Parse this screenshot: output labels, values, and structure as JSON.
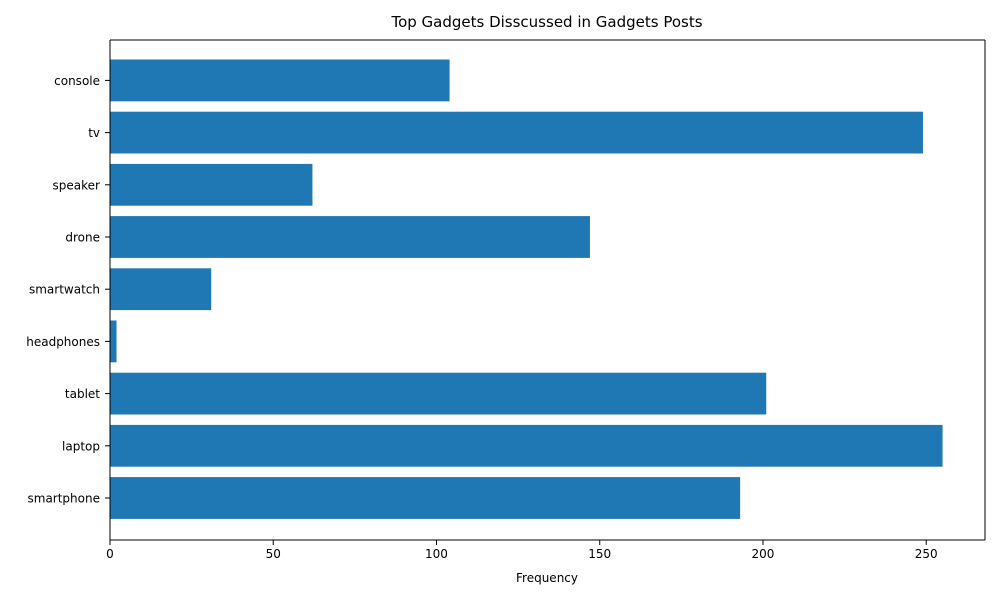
{
  "chart_data": {
    "type": "bar",
    "orientation": "horizontal",
    "title": "Top Gadgets Disscussed in Gadgets Posts",
    "xlabel": "Frequency",
    "ylabel": "",
    "categories": [
      "smartphone",
      "laptop",
      "tablet",
      "headphones",
      "smartwatch",
      "drone",
      "speaker",
      "tv",
      "console"
    ],
    "values": [
      193,
      255,
      201,
      2,
      31,
      147,
      62,
      249,
      104
    ],
    "xlim": [
      0,
      268
    ],
    "xticks": [
      0,
      50,
      100,
      150,
      200,
      250
    ],
    "grid": false,
    "legend": "none",
    "bar_color": "#1f77b4",
    "axis_color": "#000000"
  }
}
